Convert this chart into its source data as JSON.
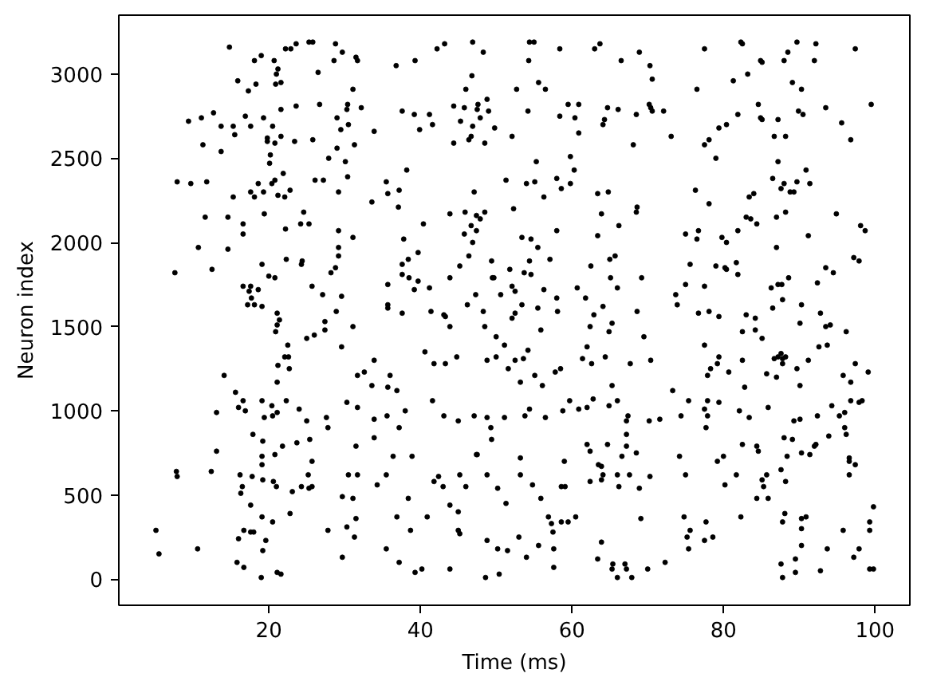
{
  "chart_data": {
    "type": "scatter",
    "xlabel": "Time (ms)",
    "ylabel": "Neuron index",
    "xlim": [
      0.2,
      104.6
    ],
    "ylim": [
      -155,
      3350
    ],
    "xticks": [
      20,
      40,
      60,
      80,
      100
    ],
    "yticks": [
      0,
      500,
      1000,
      1500,
      2000,
      2500,
      3000
    ],
    "marker": "circle",
    "series": [
      {
        "color": "#000000",
        "x": [
          14.8,
          15.9,
          17.3,
          18.3,
          18.1,
          19.0,
          20.7,
          21.2,
          21.0,
          20.9,
          21.6,
          22.2,
          22.9,
          23.6,
          25.3,
          25.8,
          26.5,
          28.8,
          28.6,
          29.7,
          7.9,
          9.7,
          11.8,
          9.4,
          11.1,
          12.7,
          13.7,
          11.3,
          13.7,
          15.3,
          15.5,
          16.9,
          17.6,
          19.3,
          20.5,
          21.6,
          23.6,
          19.8,
          19.8,
          20.8,
          21.6,
          20.2,
          20.1,
          23.4,
          25.8,
          26.7,
          27.9,
          29.0,
          29.5,
          29.0,
          15.3,
          17.6,
          18.1,
          18.6,
          19.3,
          20.4,
          20.8,
          21.9,
          21.2,
          22.1,
          22.8,
          19.4,
          22.2,
          24.2,
          24.6,
          25.3,
          26.1,
          27.2,
          29.2,
          11.6,
          14.6,
          16.6,
          16.6,
          10.7,
          14.6,
          12.5,
          7.6,
          19.1,
          20.0,
          20.8,
          22.3,
          24.3,
          24.4,
          25.7,
          27.1,
          28.2,
          28.8,
          29.2,
          29.2,
          29.6,
          16.6,
          17.6,
          17.4,
          18.6,
          17.2,
          18.1,
          19.1,
          17.7,
          21.1,
          21.4,
          21.1,
          20.9,
          25.0,
          26.0,
          27.4,
          27.4,
          28.9,
          31.5,
          31.7,
          31.1,
          30.4,
          30.3,
          30.5,
          32.2,
          31.3,
          30.1,
          30.4,
          31.1,
          29.2,
          31.1,
          36.8,
          39.3,
          37.6,
          39.2,
          41.2,
          39.9,
          41.6,
          33.9,
          38.2,
          35.5,
          35.7,
          37.2,
          37.1,
          33.6,
          42.2,
          43.2,
          46.9,
          48.3,
          46.8,
          46.0,
          44.4,
          45.8,
          47.5,
          47.6,
          48.8,
          49.0,
          47.9,
          46.9,
          45.3,
          49.8,
          46.7,
          46.4,
          44.4,
          48.5,
          52.1,
          52.7,
          54.3,
          54.4,
          55.0,
          55.6,
          56.5,
          58.4,
          54.2,
          58.4,
          59.5,
          60.9,
          60.4,
          60.9,
          63.0,
          63.7,
          66.5,
          64.7,
          66.1,
          68.5,
          64.3,
          64.1,
          68.1,
          59.8,
          60.3,
          58.6,
          58.0,
          59.8,
          55.3,
          55.1,
          54.0,
          51.3,
          56.3,
          47.1,
          52.3,
          63.4,
          64.8,
          66.2,
          63.9,
          63.4,
          68.6,
          68.5,
          43.9,
          45.9,
          47.4,
          48.5,
          46.7,
          47.4,
          47.9,
          45.8,
          46.9,
          40.4,
          37.8,
          39.7,
          38.4,
          37.6,
          37.6,
          38.5,
          39.7,
          39.2,
          41.2,
          35.7,
          43.9,
          45.2,
          46.4,
          49.4,
          49.5,
          49.7,
          50.6,
          51.8,
          52.1,
          52.5,
          53.4,
          54.6,
          55.5,
          54.4,
          53.7,
          54.6,
          57.1,
          58.0,
          56.3,
          58.0,
          60.7,
          61.8,
          62.5,
          65.0,
          65.7,
          65.1,
          66.0,
          35.7,
          35.7,
          37.6,
          41.4,
          43.1,
          43.3,
          43.9,
          46.2,
          47.3,
          48.3,
          48.5,
          50.0,
          53.4,
          52.5,
          52.1,
          55.5,
          55.9,
          58.1,
          62.9,
          62.4,
          64.1,
          65.3,
          64.9,
          68.6,
          68.9,
          70.3,
          70.6,
          70.2,
          70.4,
          70.6,
          72.1,
          73.1,
          77.5,
          76.5,
          82.3,
          82.5,
          81.3,
          83.2,
          81.9,
          80.4,
          79.4,
          78.1,
          77.5,
          79.0,
          84.9,
          85.1,
          84.6,
          84.9,
          85.1,
          87.2,
          86.7,
          88.2,
          88.0,
          88.5,
          89.7,
          92.2,
          92.0,
          89.1,
          90.3,
          89.9,
          90.5,
          93.5,
          95.6,
          96.8,
          99.5,
          97.4,
          87.2,
          86.5,
          88.0,
          87.6,
          88.8,
          89.3,
          89.7,
          90.9,
          91.4,
          83.4,
          84.0,
          76.3,
          78.1,
          83.0,
          83.6,
          84.4,
          87.0,
          88.2,
          94.9,
          91.2,
          98.1,
          98.7,
          75.0,
          76.7,
          76.5,
          79.8,
          80.4,
          81.9,
          75.6,
          79.0,
          80.2,
          80.4,
          81.7,
          81.9,
          77.5,
          75.0,
          73.7,
          73.9,
          76.7,
          78.1,
          79.4,
          83.0,
          84.2,
          82.5,
          84.2,
          85.1,
          87.0,
          86.3,
          87.2,
          87.7,
          88.6,
          87.8,
          86.5,
          90.3,
          90.1,
          92.4,
          93.5,
          94.5,
          92.8,
          93.5,
          94.1,
          96.2,
          97.2,
          97.9,
          69.2,
          69.5,
          29.6,
          22.5,
          22.1,
          22.6,
          21.2,
          22.7,
          21.1,
          14.1,
          15.6,
          16.6,
          16.0,
          16.9,
          19.1,
          20.4,
          21.1,
          20.5,
          19.4,
          13.1,
          22.3,
          24.0,
          25.0,
          27.6,
          27.8,
          25.4,
          23.7,
          21.8,
          25.7,
          25.2,
          25.7,
          25.3,
          24.3,
          23.1,
          20.8,
          19.1,
          19.1,
          19.2,
          17.9,
          13.1,
          12.4,
          7.8,
          7.9,
          16.2,
          16.5,
          16.3,
          17.8,
          19.2,
          20.6,
          21.0,
          17.6,
          19.1,
          20.5,
          22.8,
          29.7,
          29.7,
          27.8,
          5.1,
          5.5,
          10.6,
          16.0,
          16.7,
          17.6,
          18.0,
          19.6,
          19.2,
          15.8,
          16.7,
          19.0,
          21.1,
          21.6,
          31.1,
          30.3,
          31.3,
          31.5,
          30.5,
          31.7,
          31.5,
          30.3,
          31.7,
          33.9,
          33.9,
          31.7,
          32.6,
          33.9,
          33.6,
          35.7,
          36.9,
          36.0,
          35.6,
          37.2,
          38.0,
          38.9,
          36.4,
          35.5,
          34.3,
          38.4,
          36.9,
          38.7,
          35.5,
          37.2,
          39.3,
          40.2,
          43.9,
          40.9,
          41.8,
          42.4,
          43.0,
          43.9,
          45.0,
          45.0,
          45.2,
          45.2,
          46.0,
          48.8,
          50.2,
          51.3,
          47.4,
          47.5,
          48.8,
          49.3,
          49.4,
          47.1,
          45.0,
          43.1,
          41.6,
          40.6,
          41.8,
          43.3,
          44.8,
          48.8,
          50.0,
          51.1,
          51.6,
          52.5,
          53.6,
          54.2,
          53.2,
          55.1,
          56.1,
          57.8,
          58.5,
          51.1,
          53.8,
          54.4,
          56.5,
          58.8,
          59.7,
          60.9,
          62.0,
          62.8,
          62.0,
          62.4,
          64.7,
          63.5,
          63.9,
          64.1,
          62.4,
          63.9,
          66.0,
          66.2,
          66.6,
          67.2,
          68.5,
          67.2,
          67.2,
          67.4,
          64.9,
          66.0,
          65.3,
          67.7,
          64.4,
          61.4,
          62.0,
          62.6,
          59.0,
          48.8,
          50.2,
          51.5,
          53.0,
          54.0,
          55.6,
          56.9,
          57.5,
          57.3,
          58.6,
          59.5,
          60.5,
          58.6,
          59.1,
          54.8,
          55.9,
          53.2,
          53.2,
          48.6,
          50.4,
          57.6,
          57.6,
          63.4,
          63.9,
          65.4,
          65.3,
          67.0,
          67.2,
          66.0,
          67.9,
          67.6,
          68.9,
          69.1,
          70.3,
          70.4,
          70.2,
          71.6,
          73.3,
          74.4,
          75.4,
          75.0,
          74.2,
          74.8,
          75.2,
          75.6,
          75.4,
          77.5,
          78.6,
          77.7,
          77.5,
          77.9,
          78.3,
          79.2,
          79.4,
          80.7,
          82.5,
          82.8,
          77.5,
          77.9,
          77.7,
          77.9,
          79.4,
          82.1,
          83.4,
          82.5,
          81.7,
          80.2,
          80.0,
          79.2,
          82.3,
          84.4,
          84.6,
          85.7,
          85.9,
          87.0,
          86.7,
          87.2,
          87.6,
          87.8,
          88.2,
          87.8,
          89.7,
          90.1,
          91.2,
          92.6,
          93.7,
          97.4,
          95.8,
          96.8,
          99.1,
          89.3,
          90.1,
          92.4,
          94.3,
          95.3,
          96.0,
          96.8,
          97.9,
          98.3,
          96.0,
          96.2,
          93.9,
          92.2,
          92.0,
          91.4,
          90.3,
          89.1,
          88.0,
          88.4,
          87.6,
          85.7,
          85.1,
          85.3,
          88.2,
          84.4,
          85.9,
          96.6,
          96.6,
          97.4,
          96.6,
          88.1,
          87.8,
          90.3,
          90.9,
          90.3,
          90.3,
          89.5,
          87.6,
          87.8,
          89.5,
          92.8,
          93.7,
          95.8,
          97.2,
          97.9,
          99.3,
          99.3,
          99.8,
          99.3,
          99.8,
          70.0,
          72.3
        ],
        "values": [
          3160,
          2960,
          2900,
          2940,
          3080,
          3110,
          3080,
          3030,
          3000,
          2940,
          2950,
          3150,
          3150,
          3180,
          3190,
          3190,
          3010,
          3180,
          3080,
          3130,
          2360,
          2350,
          2360,
          2720,
          2740,
          2770,
          2690,
          2580,
          2540,
          2690,
          2640,
          2750,
          2690,
          2740,
          2690,
          2790,
          2810,
          2620,
          2600,
          2590,
          2630,
          2520,
          2470,
          2600,
          2610,
          2820,
          2500,
          2740,
          2670,
          2560,
          2270,
          2300,
          2270,
          2350,
          2300,
          2350,
          2370,
          2410,
          2280,
          2270,
          2310,
          2170,
          2080,
          2110,
          2180,
          2110,
          2370,
          2370,
          2300,
          2150,
          2150,
          2110,
          2050,
          1970,
          1960,
          1840,
          1820,
          1870,
          1800,
          1790,
          1900,
          1870,
          1890,
          1740,
          1690,
          1820,
          1850,
          1970,
          2070,
          1680,
          1740,
          1740,
          1710,
          1720,
          1630,
          1630,
          1620,
          1670,
          1580,
          1540,
          1510,
          1470,
          1430,
          1450,
          1530,
          1480,
          1590,
          3100,
          3080,
          2910,
          2820,
          2790,
          2700,
          2800,
          2580,
          2480,
          2390,
          2030,
          1920,
          1500,
          3050,
          3080,
          2780,
          2760,
          2760,
          2670,
          2700,
          2660,
          2430,
          2360,
          2290,
          2310,
          2210,
          2240,
          3150,
          3180,
          3190,
          3130,
          2990,
          2910,
          2810,
          2800,
          2790,
          2820,
          2850,
          2780,
          2740,
          2690,
          2720,
          2680,
          2630,
          2610,
          2590,
          2590,
          2630,
          2910,
          3080,
          3190,
          3190,
          2950,
          2910,
          3150,
          2780,
          2750,
          2820,
          2820,
          2740,
          2650,
          3150,
          3180,
          3080,
          2800,
          2790,
          2760,
          2730,
          2700,
          2580,
          2510,
          2430,
          2320,
          2380,
          2350,
          2480,
          2360,
          2350,
          2370,
          2270,
          2300,
          2200,
          2290,
          2300,
          2100,
          2170,
          2040,
          2210,
          2180,
          2170,
          2180,
          2160,
          2180,
          2100,
          2070,
          2140,
          2050,
          2000,
          2110,
          2020,
          1940,
          1900,
          1870,
          1810,
          1790,
          1770,
          1720,
          1730,
          1750,
          1790,
          1860,
          1920,
          1890,
          1790,
          1790,
          1690,
          1840,
          1740,
          1710,
          2030,
          2020,
          1970,
          1890,
          1820,
          1810,
          1900,
          2070,
          1720,
          1670,
          1730,
          1670,
          1860,
          1900,
          1920,
          1790,
          1730,
          1630,
          1610,
          1580,
          1590,
          1570,
          1560,
          1500,
          1630,
          1690,
          1590,
          1500,
          1440,
          1630,
          1580,
          1550,
          1610,
          1480,
          1590,
          1570,
          1500,
          1620,
          1520,
          1470,
          1590,
          3130,
          3050,
          2970,
          2820,
          2800,
          2780,
          2780,
          2630,
          3150,
          2910,
          3190,
          3180,
          2960,
          3000,
          2760,
          2700,
          2680,
          2610,
          2580,
          2500,
          3080,
          3070,
          2820,
          2740,
          2730,
          2730,
          2630,
          2630,
          3080,
          3130,
          3190,
          3180,
          3080,
          2950,
          2910,
          2780,
          2760,
          2800,
          2710,
          2610,
          2820,
          3150,
          2480,
          2380,
          2350,
          2320,
          2300,
          2300,
          2360,
          2430,
          2350,
          2270,
          2290,
          2310,
          2230,
          2150,
          2140,
          2110,
          2150,
          2180,
          2170,
          2040,
          2100,
          2070,
          2050,
          2070,
          2020,
          2030,
          2000,
          2070,
          1870,
          1860,
          1850,
          1840,
          1880,
          1810,
          1740,
          1750,
          1690,
          1630,
          1580,
          1590,
          1560,
          1570,
          1550,
          1470,
          1480,
          1430,
          1970,
          1730,
          1750,
          1750,
          1790,
          1660,
          1610,
          1630,
          1520,
          1760,
          1850,
          1820,
          1580,
          1500,
          1510,
          1470,
          1910,
          1890,
          1790,
          1440,
          1380,
          1390,
          1320,
          1320,
          1270,
          1250,
          1170,
          1210,
          1110,
          1060,
          1020,
          1000,
          1060,
          1030,
          990,
          970,
          960,
          990,
          1060,
          1010,
          940,
          960,
          900,
          830,
          810,
          790,
          700,
          620,
          550,
          540,
          550,
          520,
          740,
          730,
          680,
          820,
          860,
          760,
          640,
          640,
          610,
          620,
          550,
          510,
          610,
          590,
          580,
          550,
          440,
          370,
          340,
          390,
          490,
          130,
          290,
          290,
          150,
          180,
          240,
          290,
          280,
          280,
          230,
          170,
          100,
          70,
          10,
          40,
          30,
          480,
          310,
          250,
          360,
          620,
          620,
          790,
          1050,
          1020,
          950,
          840,
          1210,
          1230,
          1300,
          1150,
          1140,
          1120,
          1210,
          970,
          900,
          1000,
          730,
          730,
          620,
          560,
          480,
          370,
          290,
          180,
          100,
          40,
          60,
          60,
          370,
          580,
          610,
          550,
          440,
          400,
          290,
          270,
          620,
          550,
          620,
          540,
          450,
          740,
          740,
          960,
          900,
          830,
          970,
          940,
          970,
          1060,
          1350,
          1280,
          1280,
          1320,
          1300,
          1320,
          1390,
          1250,
          1300,
          1310,
          1360,
          1170,
          1210,
          1150,
          1230,
          1250,
          960,
          970,
          1010,
          960,
          1000,
          1060,
          1010,
          1020,
          1070,
          800,
          760,
          800,
          680,
          670,
          620,
          580,
          590,
          620,
          550,
          730,
          790,
          750,
          860,
          940,
          970,
          1030,
          1060,
          1150,
          1280,
          1320,
          1310,
          1380,
          1280,
          700,
          230,
          180,
          170,
          250,
          130,
          200,
          370,
          280,
          330,
          340,
          340,
          370,
          550,
          550,
          560,
          480,
          620,
          720,
          10,
          30,
          180,
          70,
          120,
          220,
          90,
          60,
          90,
          60,
          10,
          10,
          620,
          540,
          360,
          610,
          1300,
          940,
          950,
          1120,
          970,
          1060,
          620,
          730,
          370,
          250,
          290,
          180,
          230,
          250,
          340,
          1390,
          1210,
          1250,
          1280,
          1320,
          1230,
          1300,
          1140,
          1010,
          970,
          900,
          1060,
          1050,
          1000,
          960,
          800,
          620,
          560,
          730,
          700,
          370,
          790,
          760,
          1220,
          1020,
          1200,
          1310,
          1320,
          1340,
          1310,
          1320,
          1280,
          1250,
          1150,
          1300,
          1380,
          1390,
          1280,
          1210,
          1170,
          1230,
          940,
          950,
          970,
          1030,
          970,
          990,
          1060,
          1050,
          1060,
          900,
          860,
          850,
          800,
          790,
          740,
          750,
          830,
          840,
          730,
          650,
          620,
          590,
          550,
          580,
          480,
          480,
          720,
          700,
          680,
          620,
          390,
          340,
          360,
          370,
          300,
          200,
          120,
          90,
          10,
          40,
          50,
          180,
          290,
          130,
          180,
          340,
          290,
          430,
          60,
          60,
          60,
          100
        ]
      }
    ]
  }
}
